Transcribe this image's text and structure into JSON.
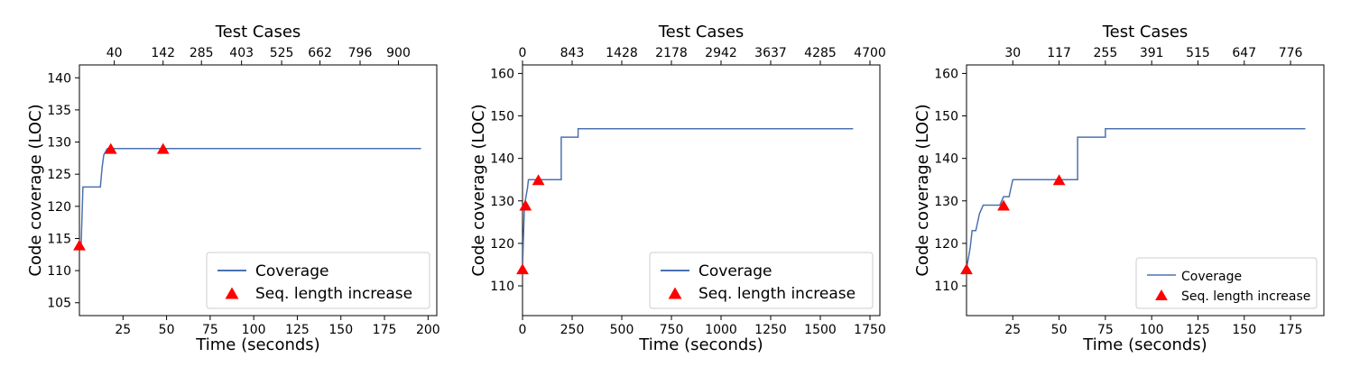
{
  "chart_data": [
    {
      "type": "line",
      "title": "",
      "xlabel": "Time (seconds)",
      "ylabel": "Code coverage (LOC)",
      "top_xlabel": "Test Cases",
      "xlim": [
        0,
        205
      ],
      "ylim": [
        103,
        142
      ],
      "xticks": [
        25,
        50,
        75,
        100,
        125,
        150,
        175,
        200
      ],
      "yticks": [
        105,
        110,
        115,
        120,
        125,
        130,
        135,
        140
      ],
      "top_xticks": [
        {
          "x": 20,
          "label": "40"
        },
        {
          "x": 48,
          "label": "142"
        },
        {
          "x": 70,
          "label": "285"
        },
        {
          "x": 93,
          "label": "403"
        },
        {
          "x": 116,
          "label": "525"
        },
        {
          "x": 138,
          "label": "662"
        },
        {
          "x": 161,
          "label": "796"
        },
        {
          "x": 183,
          "label": "900"
        }
      ],
      "series": [
        {
          "name": "Coverage",
          "color": "#4c72b0",
          "points": [
            [
              0,
              114
            ],
            [
              1,
              114
            ],
            [
              2,
              123
            ],
            [
              12,
              123
            ],
            [
              13,
              126
            ],
            [
              14,
              128
            ],
            [
              16,
              129
            ],
            [
              196,
              129
            ]
          ]
        }
      ],
      "markers": {
        "name": "Seq. length increase",
        "color": "#ff0000",
        "points": [
          [
            0,
            114
          ],
          [
            18,
            129
          ],
          [
            48,
            129
          ]
        ]
      },
      "legend": {
        "position": "bottom-right",
        "size": "large"
      }
    },
    {
      "type": "line",
      "title": "",
      "xlabel": "Time (seconds)",
      "ylabel": "Code coverage (LOC)",
      "top_xlabel": "Test Cases",
      "xlim": [
        0,
        1800
      ],
      "ylim": [
        103,
        162
      ],
      "xticks": [
        0,
        250,
        500,
        750,
        1000,
        1250,
        1500,
        1750
      ],
      "yticks": [
        110,
        120,
        130,
        140,
        150,
        160
      ],
      "top_xticks": [
        {
          "x": 0,
          "label": "0"
        },
        {
          "x": 250,
          "label": "843"
        },
        {
          "x": 500,
          "label": "1428"
        },
        {
          "x": 750,
          "label": "2178"
        },
        {
          "x": 1000,
          "label": "2942"
        },
        {
          "x": 1250,
          "label": "3637"
        },
        {
          "x": 1500,
          "label": "4285"
        },
        {
          "x": 1750,
          "label": "4700"
        }
      ],
      "series": [
        {
          "name": "Coverage",
          "color": "#4c72b0",
          "points": [
            [
              0,
              114
            ],
            [
              5,
              122
            ],
            [
              10,
              129
            ],
            [
              25,
              133
            ],
            [
              30,
              135
            ],
            [
              195,
              135
            ],
            [
              195,
              145
            ],
            [
              280,
              145
            ],
            [
              280,
              147
            ],
            [
              1665,
              147
            ]
          ]
        }
      ],
      "markers": {
        "name": "Seq. length increase",
        "color": "#ff0000",
        "points": [
          [
            0,
            114
          ],
          [
            15,
            129
          ],
          [
            80,
            135
          ]
        ]
      },
      "legend": {
        "position": "bottom-right",
        "size": "large"
      }
    },
    {
      "type": "line",
      "title": "",
      "xlabel": "Time (seconds)",
      "ylabel": "Code coverage (LOC)",
      "top_xlabel": "Test Cases",
      "xlim": [
        0,
        193
      ],
      "ylim": [
        103,
        162
      ],
      "xticks": [
        25,
        50,
        75,
        100,
        125,
        150,
        175
      ],
      "yticks": [
        110,
        120,
        130,
        140,
        150,
        160
      ],
      "top_xticks": [
        {
          "x": 25,
          "label": "30"
        },
        {
          "x": 50,
          "label": "117"
        },
        {
          "x": 75,
          "label": "255"
        },
        {
          "x": 100,
          "label": "391"
        },
        {
          "x": 125,
          "label": "515"
        },
        {
          "x": 150,
          "label": "647"
        },
        {
          "x": 175,
          "label": "776"
        }
      ],
      "series": [
        {
          "name": "Coverage",
          "color": "#4c72b0",
          "points": [
            [
              0,
              114
            ],
            [
              2,
              119
            ],
            [
              3,
              123
            ],
            [
              5,
              123
            ],
            [
              7,
              127
            ],
            [
              9,
              129
            ],
            [
              18,
              129
            ],
            [
              20,
              131
            ],
            [
              23,
              131
            ],
            [
              24,
              133
            ],
            [
              25,
              135
            ],
            [
              60,
              135
            ],
            [
              60,
              145
            ],
            [
              75,
              145
            ],
            [
              75,
              147
            ],
            [
              183,
              147
            ]
          ]
        }
      ],
      "markers": {
        "name": "Seq. length increase",
        "color": "#ff0000",
        "points": [
          [
            0,
            114
          ],
          [
            20,
            129
          ],
          [
            50,
            135
          ]
        ]
      },
      "legend": {
        "position": "bottom-right",
        "size": "small"
      }
    }
  ]
}
